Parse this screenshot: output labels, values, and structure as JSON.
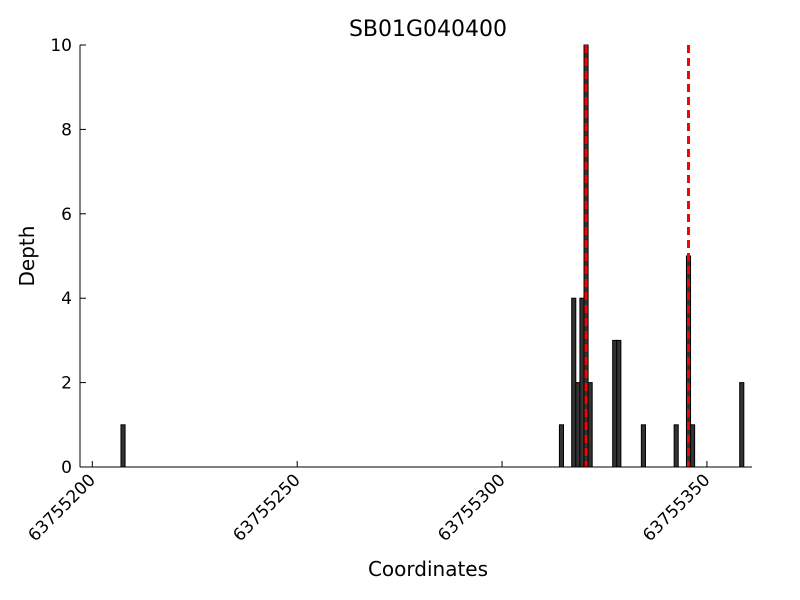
{
  "chart_data": {
    "type": "bar",
    "title": "SB01G040400",
    "x_label": "Coordinates",
    "y_label": "Depth",
    "x": [
      63755207,
      63755314,
      63755317,
      63755318,
      63755319,
      63755320,
      63755321,
      63755327,
      63755328,
      63755334,
      63755342,
      63755345,
      63755346,
      63755358
    ],
    "values": [
      1,
      1,
      4,
      2,
      4,
      10,
      2,
      3,
      3,
      1,
      1,
      5,
      1,
      2
    ],
    "color": "#333333",
    "vlines": [
      63755320.5,
      63755345.5
    ],
    "vline_color": "#ff0000",
    "xlim": [
      63755197,
      63755361
    ],
    "ylim": [
      0,
      10
    ],
    "xticks": [
      63755200,
      63755250,
      63755300,
      63755350
    ],
    "yticks": [
      0,
      2,
      4,
      6,
      8,
      10
    ]
  }
}
